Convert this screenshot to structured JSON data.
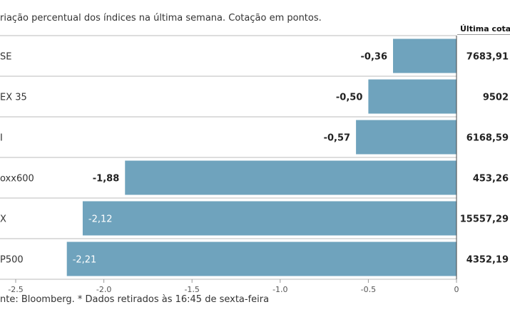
{
  "subtitle": "riação percentual dos índices na última semana. Cotação em pontos.",
  "column_header": "Última cotaç",
  "source": "nte: Bloomberg.  * Dados retirados às 16:45 de sexta-feira",
  "colors": {
    "bar": "#6fa3bd",
    "gridline": "#bbbbbb"
  },
  "chart_data": {
    "type": "bar",
    "orientation": "horizontal",
    "categories": [
      "SE",
      "EX 35",
      "I",
      "oxx600",
      "X",
      "P500"
    ],
    "values": [
      -0.36,
      -0.5,
      -0.57,
      -1.88,
      -2.12,
      -2.21
    ],
    "value_labels": [
      "-0,36",
      "-0,50",
      "-0,57",
      "-1,88",
      "-2,12",
      "-2,21"
    ],
    "quotes": [
      "7683,91",
      "9502",
      "6168,59",
      "453,26",
      "15557,29",
      "4352,19"
    ],
    "xlim": [
      -2.5,
      0
    ],
    "xticks": [
      -2.5,
      -2.0,
      -1.5,
      -1.0,
      -0.5,
      0
    ],
    "xtick_labels": [
      "-2,5",
      "-2,0",
      "-1,5",
      "-1,0",
      "-0,5",
      "0"
    ],
    "grid": false
  }
}
